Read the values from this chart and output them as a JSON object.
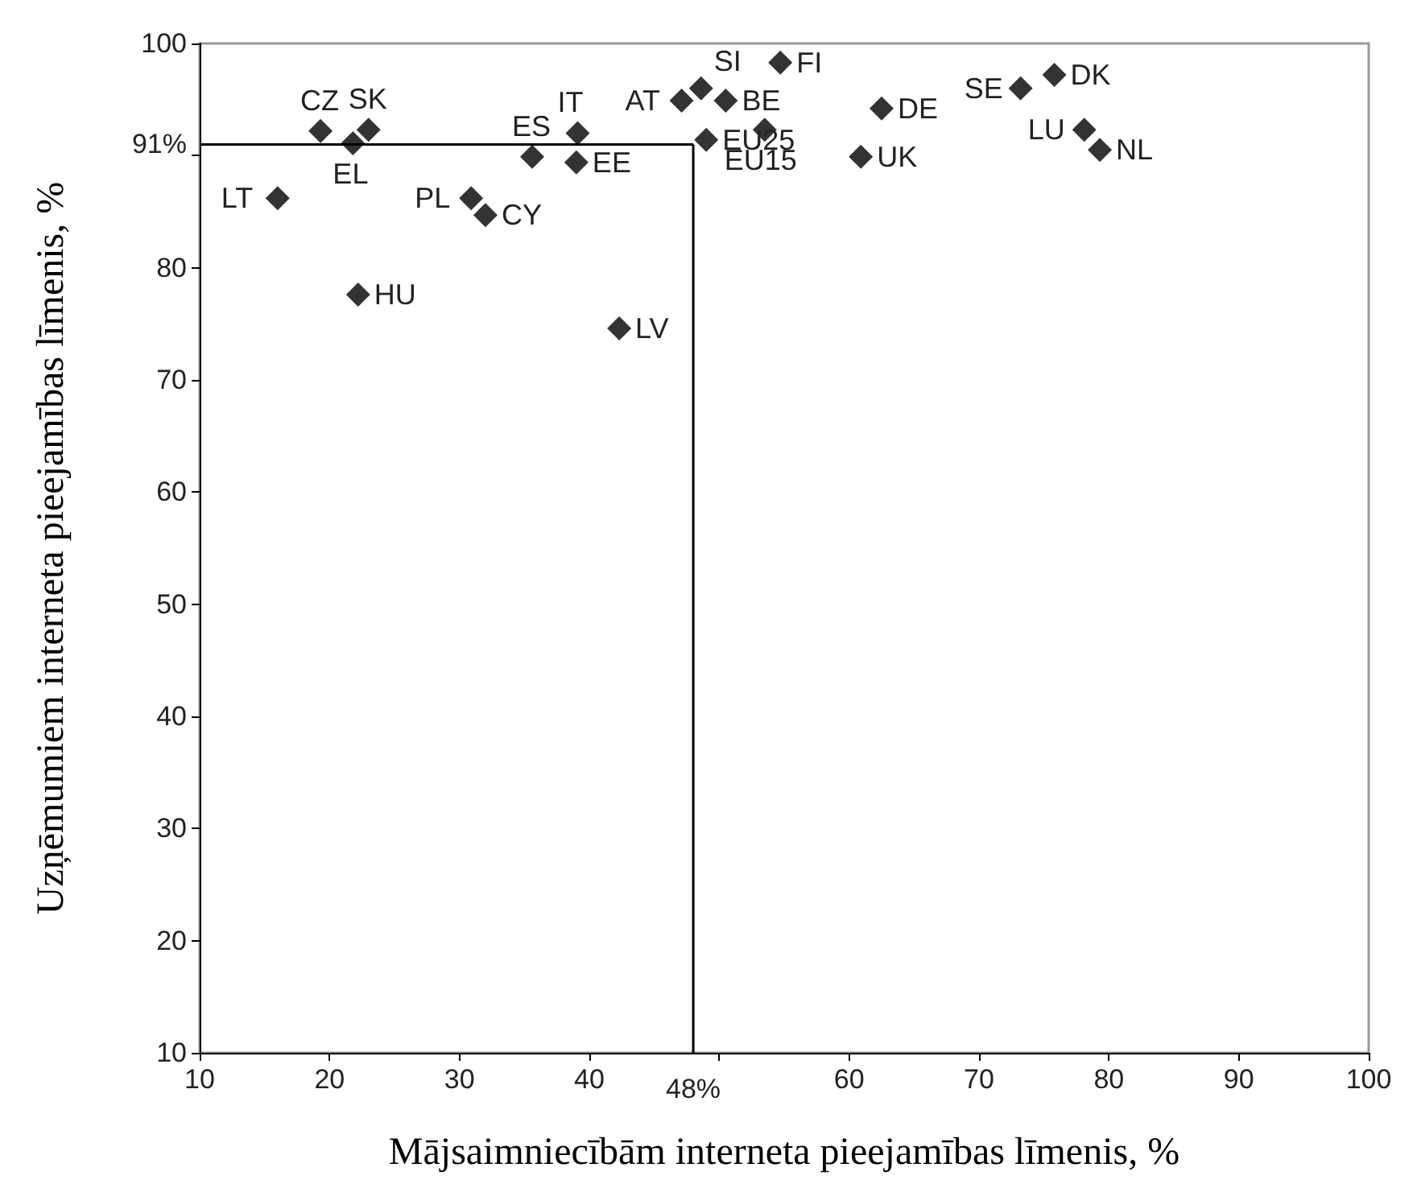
{
  "chart_data": {
    "type": "scatter",
    "xlabel": "Mājsaimniecībām interneta pieejamības līmenis, %",
    "ylabel": "Uzņēmumiem interneta pieejamības līmenis, %",
    "series": [
      {
        "color": "#000000",
        "x": [
          19.3,
          21.8,
          23.0,
          16.0,
          22.2,
          30.9,
          32.0,
          35.6,
          39.1,
          39.0,
          42.3,
          47.1,
          48.6,
          50.5,
          53.5,
          54.7,
          49.0,
          62.5,
          60.9,
          73.2,
          75.8,
          78.1,
          79.3
        ],
        "values": [
          92.2,
          91.1,
          92.3,
          86.2,
          77.6,
          86.2,
          84.7,
          89.9,
          92.0,
          89.4,
          74.6,
          94.9,
          96.0,
          94.9,
          92.3,
          98.3,
          91.4,
          94.2,
          89.9,
          96.0,
          97.2,
          92.3,
          90.5
        ]
      }
    ],
    "annotations": [
      {
        "text": "CZ",
        "x": 19.3,
        "y": 92.2
      },
      {
        "text": "EL",
        "x": 21.8,
        "y": 91.1
      },
      {
        "text": "SK",
        "x": 23.0,
        "y": 92.3
      },
      {
        "text": "LT",
        "x": 16.0,
        "y": 86.2
      },
      {
        "text": "HU",
        "x": 22.2,
        "y": 77.6
      },
      {
        "text": "PL",
        "x": 30.9,
        "y": 86.2
      },
      {
        "text": "CY",
        "x": 32.0,
        "y": 84.7
      },
      {
        "text": "ES",
        "x": 35.6,
        "y": 89.9
      },
      {
        "text": "IT",
        "x": 39.1,
        "y": 92.0
      },
      {
        "text": "EE",
        "x": 39.0,
        "y": 89.4
      },
      {
        "text": "LV",
        "x": 42.3,
        "y": 74.6
      },
      {
        "text": "AT",
        "x": 47.1,
        "y": 94.9
      },
      {
        "text": "SI",
        "x": 48.6,
        "y": 96.0
      },
      {
        "text": "BE",
        "x": 50.5,
        "y": 94.9
      },
      {
        "text": "EU15",
        "x": 53.5,
        "y": 92.3
      },
      {
        "text": "FI",
        "x": 54.7,
        "y": 98.3
      },
      {
        "text": "EU25",
        "x": 49.0,
        "y": 91.4
      },
      {
        "text": "DE",
        "x": 62.5,
        "y": 94.2
      },
      {
        "text": "UK",
        "x": 60.9,
        "y": 89.9
      },
      {
        "text": "SE",
        "x": 73.2,
        "y": 96.0
      },
      {
        "text": "DK",
        "x": 75.8,
        "y": 97.2
      },
      {
        "text": "LU",
        "x": 78.1,
        "y": 92.3
      },
      {
        "text": "NL",
        "x": 79.3,
        "y": 90.5
      }
    ],
    "ref_lines": [
      {
        "axis": "x",
        "value": 48,
        "label": "48%",
        "color": "#000000"
      },
      {
        "axis": "y",
        "value": 91,
        "label": "91%",
        "color": "#000000"
      }
    ],
    "xlim": [
      10,
      100
    ],
    "xticks": [
      10,
      20,
      30,
      40,
      {
        "value": 50,
        "label": null
      },
      60,
      70,
      80,
      90,
      100
    ],
    "ylim": [
      10,
      100
    ],
    "yticks": [
      10,
      20,
      30,
      40,
      50,
      60,
      70,
      80,
      {
        "value": 90,
        "label": null
      },
      100
    ],
    "marker": "diamond"
  }
}
